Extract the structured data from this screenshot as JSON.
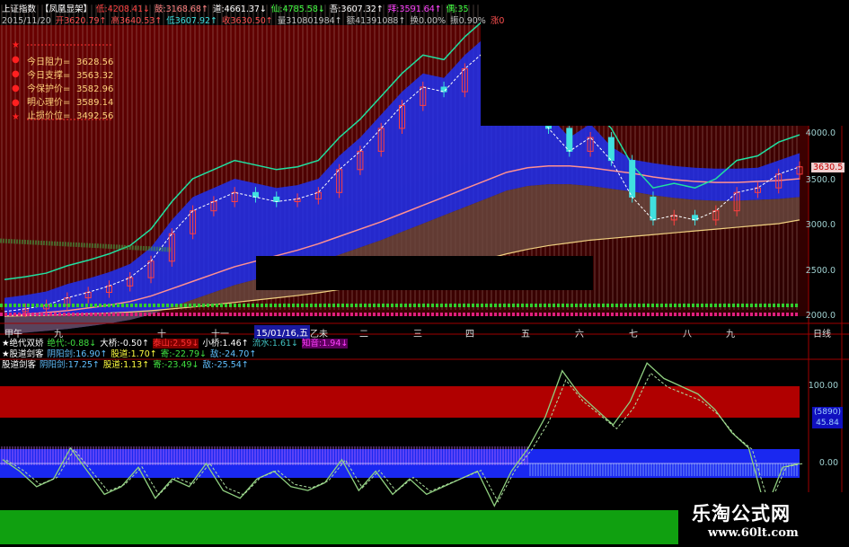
{
  "header": {
    "line1": [
      {
        "text": "上证指数",
        "color": "#ffffff"
      },
      {
        "text": "【凤凰显架】",
        "color": "#ffffff"
      },
      {
        "text": "低:4208.41↓",
        "color": "#ff4040"
      },
      {
        "text": "鼓:3168.68↑",
        "color": "#ff8080"
      },
      {
        "text": "道:4661.37↓",
        "color": "#ffffff"
      },
      {
        "text": "仙:4785.58↓",
        "color": "#40ff40"
      },
      {
        "text": "吾:3607.32↑",
        "color": "#ffffff"
      },
      {
        "text": "拜:3591.64↑",
        "color": "#ff40ff"
      },
      {
        "text": "偶:35",
        "color": "#40ff40"
      }
    ],
    "line2": [
      {
        "text": "2015/11/20",
        "color": "#c0c0c0"
      },
      {
        "text": "开3620.79↑",
        "color": "#ff5050"
      },
      {
        "text": "高3640.53↑",
        "color": "#ff5050"
      },
      {
        "text": "低3607.92↑",
        "color": "#40e0e0"
      },
      {
        "text": "收3630.50↑",
        "color": "#ff5050"
      },
      {
        "text": "量310801984↑",
        "color": "#c0c0c0"
      },
      {
        "text": "额41391088↑",
        "color": "#c0c0c0"
      },
      {
        "text": "换0.00%",
        "color": "#c0c0c0"
      },
      {
        "text": "振0.90%",
        "color": "#c0c0c0"
      },
      {
        "text": "涨0",
        "color": "#ff5050"
      }
    ]
  },
  "levels": [
    {
      "label": "今日阻力=",
      "value": "3628.56"
    },
    {
      "label": "今日支撑=",
      "value": "3563.32"
    },
    {
      "label": "今保护价=",
      "value": "3582.96"
    },
    {
      "label": "明心理价=",
      "value": "3589.14"
    },
    {
      "label": "止损价位=",
      "value": "3492.56"
    }
  ],
  "time_axis": [
    "甲午",
    "九",
    "十",
    "十一",
    "15/01/16,五",
    "乙未",
    "二",
    "三",
    "四",
    "五",
    "六",
    "七",
    "八",
    "九",
    "日线"
  ],
  "indicators": [
    [
      {
        "text": "★绝代双娇",
        "color": "#ffffff"
      },
      {
        "text": "绝代:-0.88↓",
        "color": "#40e040"
      },
      {
        "text": "大桥:-0.50↑",
        "color": "#ffffff"
      },
      {
        "text": "泰山:2.59↓",
        "color": "#ff3030"
      },
      {
        "text": "小桥:1.46↑",
        "color": "#ffffff"
      },
      {
        "text": "流水:1.61↓",
        "color": "#40c0c0"
      },
      {
        "text": "知音:1.94↓",
        "color": "#ff40ff"
      }
    ],
    [
      {
        "text": "★股道剑客",
        "color": "#ffffff"
      },
      {
        "text": "阴阳剑:16.90↑",
        "color": "#60c0ff"
      },
      {
        "text": "股道:1.70↑",
        "color": "#ffff40"
      },
      {
        "text": "寄:-22.79↓",
        "color": "#40e040"
      },
      {
        "text": "敌:-24.70↑",
        "color": "#60c0ff"
      }
    ],
    [
      {
        "text": "股道剑客",
        "color": "#ffffff"
      },
      {
        "text": "阴阳剑:17.25↑",
        "color": "#60c0ff"
      },
      {
        "text": "股道:1.13↑",
        "color": "#ffff40"
      },
      {
        "text": "寄:-23.49↓",
        "color": "#40e040"
      },
      {
        "text": "敌:-25.54↑",
        "color": "#60c0ff"
      }
    ]
  ],
  "price_axis": {
    "ticks": [
      "4000.0",
      "3500.0",
      "3000.0",
      "2500.0",
      "2000.0"
    ],
    "current": "3630.5"
  },
  "indicator_axis": {
    "ticks": [
      "100.00",
      "0.00"
    ],
    "count": "(5890)",
    "value": "45.84"
  },
  "chart_data": {
    "type": "line",
    "price_close": [
      2050,
      2080,
      2120,
      2200,
      2260,
      2330,
      2420,
      2600,
      2900,
      3150,
      3250,
      3350,
      3300,
      3250,
      3280,
      3350,
      3600,
      3800,
      4050,
      4300,
      4500,
      4450,
      4700,
      4900,
      5100,
      4600,
      4050,
      3800,
      3950,
      3700,
      3300,
      3050,
      3100,
      3050,
      3150,
      3350,
      3400,
      3550,
      3630
    ],
    "ma_long": [
      2000,
      2020,
      2040,
      2060,
      2090,
      2120,
      2160,
      2220,
      2300,
      2380,
      2460,
      2540,
      2600,
      2660,
      2720,
      2790,
      2870,
      2950,
      3030,
      3120,
      3210,
      3300,
      3390,
      3480,
      3570,
      3620,
      3640,
      3640,
      3620,
      3590,
      3560,
      3520,
      3490,
      3470,
      3460,
      3460,
      3470,
      3480,
      3500
    ],
    "ma_base": [
      2000,
      2005,
      2010,
      2018,
      2026,
      2035,
      2045,
      2060,
      2080,
      2100,
      2125,
      2150,
      2175,
      2200,
      2225,
      2255,
      2290,
      2330,
      2370,
      2410,
      2460,
      2510,
      2560,
      2620,
      2680,
      2730,
      2770,
      2800,
      2830,
      2850,
      2870,
      2890,
      2910,
      2930,
      2950,
      2970,
      2990,
      3010,
      3050
    ],
    "indicator": [
      5,
      -10,
      -30,
      -20,
      20,
      -10,
      -40,
      -30,
      -5,
      -45,
      -20,
      -30,
      0,
      -35,
      -45,
      -20,
      -10,
      -30,
      -35,
      -25,
      5,
      -35,
      -10,
      -40,
      -20,
      -40,
      -30,
      -20,
      -10,
      -55,
      -10,
      20,
      60,
      120,
      90,
      70,
      50,
      80,
      130,
      110,
      100,
      90,
      70,
      40,
      20,
      -60,
      -5,
      0
    ],
    "ylim": [
      2000,
      5200
    ]
  },
  "watermark": {
    "cn": "乐淘公式网",
    "url": "www.60lt.com"
  }
}
